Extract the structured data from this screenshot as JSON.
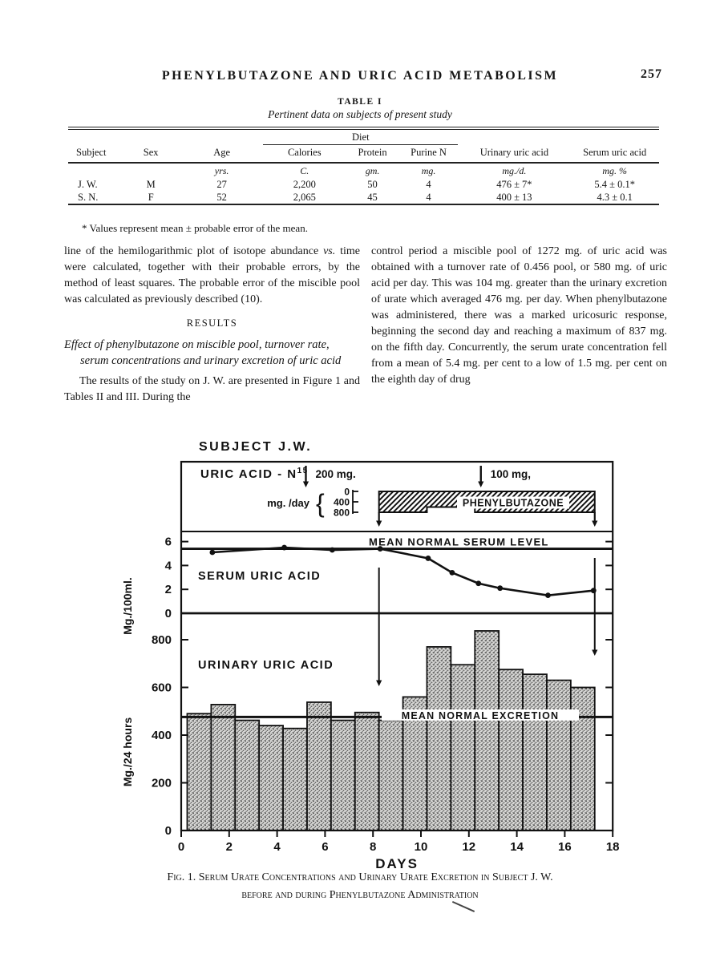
{
  "page": {
    "running_head": "PHENYLBUTAZONE AND URIC ACID METABOLISM",
    "page_number": "257"
  },
  "table1": {
    "label": "TABLE I",
    "caption": "Pertinent data on subjects of present study",
    "headers": {
      "subject": "Subject",
      "sex": "Sex",
      "age": "Age",
      "diet_group": "Diet",
      "calories": "Calories",
      "protein": "Protein",
      "purine": "Purine N",
      "urinary": "Urinary uric acid",
      "serum": "Serum uric acid"
    },
    "units": [
      "",
      "",
      "yrs.",
      "C.",
      "gm.",
      "mg.",
      "mg./d.",
      "mg. %"
    ],
    "rows": [
      [
        "J. W.",
        "M",
        "27",
        "2,200",
        "50",
        "4",
        "476 ± 7*",
        "5.4 ± 0.1*"
      ],
      [
        "S. N.",
        "F",
        "52",
        "2,065",
        "45",
        "4",
        "400 ± 13",
        "4.3 ± 0.1"
      ]
    ],
    "footnote": "* Values represent mean ± probable error of the mean."
  },
  "body": {
    "left": {
      "para1": [
        {
          "t": "line of the hemilogarithmic plot of isotope abundance "
        },
        {
          "t": "vs.",
          "i": true
        },
        {
          "t": " time were calculated, together with their probable errors, by the method of least squares.  The probable error of the miscible pool was calculated as previously described (10)."
        }
      ],
      "results_heading": "RESULTS",
      "subheading": "Effect of phenylbutazone on miscible pool, turnover rate, serum concentrations and urinary excretion of uric acid",
      "para2": "The results of the study on J. W. are presented in Figure 1 and Tables II and III.  During the"
    },
    "right": {
      "para1": "control period a miscible pool of 1272 mg. of uric acid was obtained with a turnover rate of 0.456 pool, or 580 mg. of uric acid per day.  This was 104 mg. greater than the urinary excretion of urate which averaged 476 mg. per day.  When phenylbutazone was administered, there was a marked uricosuric response, beginning the second day and reaching a maximum of 837 mg. on the fifth day.  Concurrently, the serum urate concentration fell from a mean of 5.4 mg. per cent to a low of 1.5 mg. per cent on the eighth day of drug"
    }
  },
  "figure": {
    "title": "SUBJECT J.W.",
    "dose_header_base": "URIC ACID - N",
    "dose_header_sup": "15",
    "dose_axis_label": "mg. /day",
    "phenylbutazone_label": "PHENYLBUTAZONE",
    "serum_label": "SERUM URIC ACID",
    "serum_mean_label": "MEAN NORMAL SERUM LEVEL",
    "urinary_label": "URINARY URIC ACID",
    "urinary_mean_label": "MEAN NORMAL EXCRETION",
    "serum_ylabel": "Mg./100ml.",
    "urinary_ylabel": "Mg./24 hours",
    "xlabel": "DAYS",
    "caption_line1": "Fig. 1.  Serum Urate Concentrations and Urinary Urate Excretion in Subject J. W.",
    "caption_line2": "before and during Phenylbutazone Administration"
  },
  "chart_data": [
    {
      "panel": "dose",
      "type": "area",
      "label": "PHENYLBUTAZONE",
      "axis_label": "mg. /day",
      "yticks": [
        0,
        400,
        800
      ],
      "dose_segments": [
        {
          "start_day": 8.25,
          "end_day": 10.25,
          "mg_per_day": 800
        },
        {
          "start_day": 10.25,
          "end_day": 12.25,
          "mg_per_day": 600
        },
        {
          "start_day": 12.25,
          "end_day": 17.25,
          "mg_per_day": 800
        }
      ],
      "n15_doses": [
        {
          "day": 5.2,
          "label": "200 mg."
        },
        {
          "day": 12.5,
          "label": "100 mg,"
        }
      ],
      "drug_period_arrow_days": [
        8.25,
        17.25
      ]
    },
    {
      "panel": "serum",
      "type": "line",
      "title": "SERUM URIC ACID",
      "ylabel": "Mg./100ml.",
      "ylim": [
        0,
        6.9
      ],
      "yticks": [
        0,
        2,
        4,
        6
      ],
      "x": [
        1.3,
        4.3,
        6.3,
        8.3,
        10.3,
        11.3,
        12.4,
        13.3,
        15.3,
        17.2
      ],
      "y": [
        5.1,
        5.5,
        5.3,
        5.4,
        4.6,
        3.4,
        2.5,
        2.1,
        1.5,
        1.9
      ],
      "mean_line": {
        "label": "MEAN NORMAL SERUM LEVEL",
        "value": 5.4
      }
    },
    {
      "panel": "urinary",
      "type": "bar",
      "title": "URINARY URIC ACID",
      "ylabel": "Mg./24 hours",
      "xlabel": "DAYS",
      "ylim": [
        0,
        900
      ],
      "yticks": [
        0,
        200,
        400,
        600,
        800
      ],
      "xticks": [
        0,
        2,
        4,
        6,
        8,
        10,
        12,
        14,
        16,
        18
      ],
      "bar_start_day": 0.25,
      "bar_width_days": 1,
      "values": [
        490,
        528,
        462,
        440,
        428,
        538,
        462,
        495,
        462,
        560,
        770,
        695,
        837,
        675,
        655,
        630,
        600
      ],
      "mean_line": {
        "label": "MEAN NORMAL EXCRETION",
        "value": 476
      }
    }
  ]
}
